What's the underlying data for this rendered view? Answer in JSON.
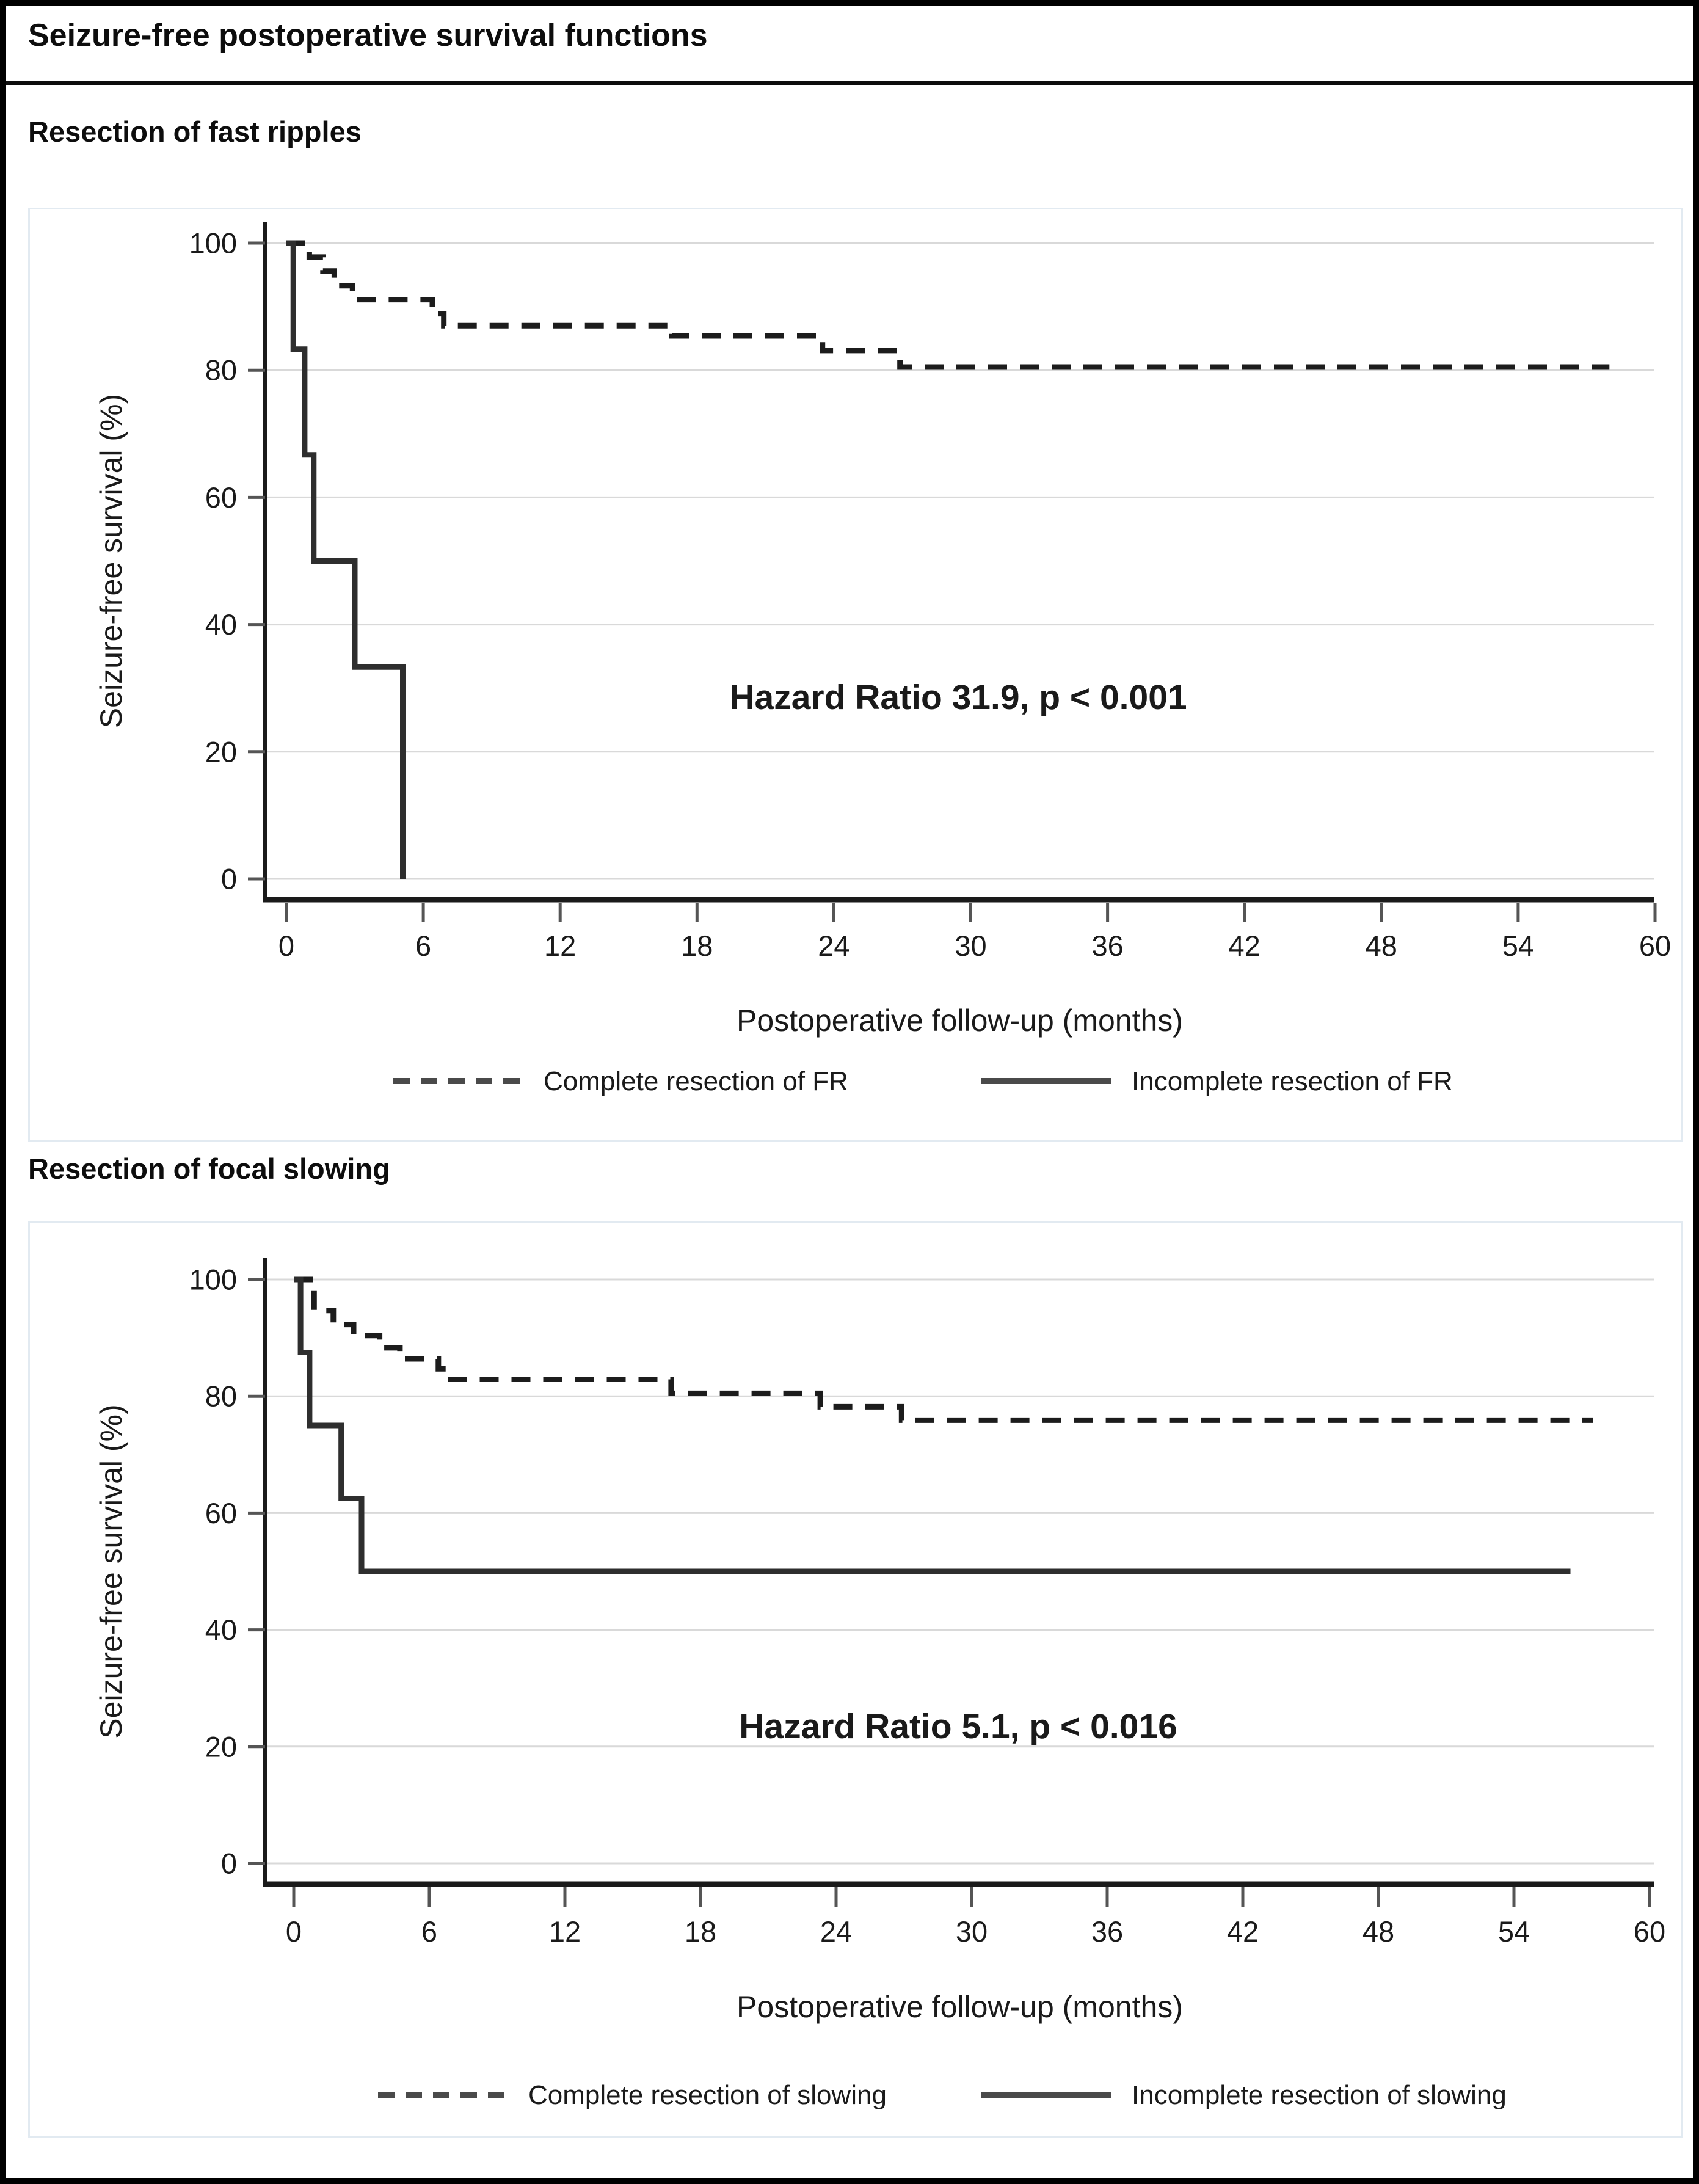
{
  "window": {
    "title": "Seizure-free postoperative survival functions"
  },
  "sections": [
    {
      "heading": "Resection of fast ripples"
    },
    {
      "heading": "Resection of focal slowing"
    }
  ],
  "colors": {
    "text": "#1a1a1a",
    "dashed_curve": "#1c1c1c",
    "solid_curve": "#2e2e2e",
    "legend_sample": "#4a4a4a",
    "grid": "#d9d9d9",
    "axis": "#1a1a1a",
    "chart_border": "#e2eaf1"
  },
  "chart_data": [
    {
      "type": "line",
      "subtype": "kaplan-meier-step",
      "title": "Resection of fast ripples",
      "xlabel": "Postoperative follow-up (months)",
      "ylabel": "Seizure-free survival (%)",
      "xlim": [
        0,
        60
      ],
      "ylim": [
        0,
        100
      ],
      "xticks": [
        0,
        6,
        12,
        18,
        24,
        30,
        36,
        42,
        48,
        54,
        60
      ],
      "yticks": [
        0,
        20,
        40,
        60,
        80,
        100
      ],
      "grid": "horizontal",
      "legend_position": "bottom",
      "annotation": "Hazard Ratio 31.9, p < 0.001",
      "series": [
        {
          "name": "Complete resection of FR",
          "style": "dashed",
          "points": [
            [
              0,
              100
            ],
            [
              1.0,
              100
            ],
            [
              1.0,
              97.8
            ],
            [
              1.6,
              97.8
            ],
            [
              1.6,
              95.6
            ],
            [
              2.1,
              95.6
            ],
            [
              2.1,
              93.3
            ],
            [
              2.9,
              93.3
            ],
            [
              2.9,
              91.1
            ],
            [
              6.4,
              91.1
            ],
            [
              6.4,
              88.9
            ],
            [
              6.9,
              88.9
            ],
            [
              6.9,
              87.0
            ],
            [
              16.9,
              87.0
            ],
            [
              16.9,
              85.4
            ],
            [
              23.5,
              85.4
            ],
            [
              23.5,
              83.1
            ],
            [
              26.9,
              83.1
            ],
            [
              26.9,
              80.5
            ],
            [
              58.0,
              80.5
            ]
          ]
        },
        {
          "name": "Incomplete resection of FR",
          "style": "solid",
          "points": [
            [
              0,
              100
            ],
            [
              0.3,
              100
            ],
            [
              0.3,
              83.3
            ],
            [
              0.8,
              83.3
            ],
            [
              0.8,
              66.7
            ],
            [
              1.2,
              66.7
            ],
            [
              1.2,
              50
            ],
            [
              3.0,
              50
            ],
            [
              3.0,
              33.3
            ],
            [
              5.1,
              33.3
            ],
            [
              5.1,
              0
            ]
          ]
        }
      ]
    },
    {
      "type": "line",
      "subtype": "kaplan-meier-step",
      "title": "Resection of focal slowing",
      "xlabel": "Postoperative follow-up (months)",
      "ylabel": "Seizure-free survival (%)",
      "xlim": [
        0,
        60
      ],
      "ylim": [
        0,
        100
      ],
      "xticks": [
        0,
        6,
        12,
        18,
        24,
        30,
        36,
        42,
        48,
        54,
        60
      ],
      "yticks": [
        0,
        20,
        40,
        60,
        80,
        100
      ],
      "grid": "horizontal",
      "legend_position": "bottom",
      "annotation": "Hazard Ratio 5.1, p < 0.016",
      "series": [
        {
          "name": "Complete resection of slowing",
          "style": "dashed",
          "points": [
            [
              0,
              100
            ],
            [
              0.9,
              100
            ],
            [
              0.9,
              94.7
            ],
            [
              1.75,
              94.7
            ],
            [
              1.75,
              92.3
            ],
            [
              2.65,
              92.3
            ],
            [
              2.65,
              90.4
            ],
            [
              3.8,
              90.4
            ],
            [
              3.8,
              88.3
            ],
            [
              4.7,
              88.3
            ],
            [
              4.7,
              86.4
            ],
            [
              6.4,
              86.4
            ],
            [
              6.4,
              84.7
            ],
            [
              6.8,
              84.7
            ],
            [
              6.8,
              82.9
            ],
            [
              16.7,
              82.9
            ],
            [
              16.7,
              80.5
            ],
            [
              23.3,
              80.5
            ],
            [
              23.3,
              78.2
            ],
            [
              26.9,
              78.2
            ],
            [
              26.9,
              75.9
            ],
            [
              57.5,
              75.9
            ]
          ]
        },
        {
          "name": "Incomplete resection of slowing",
          "style": "solid",
          "points": [
            [
              0,
              100
            ],
            [
              0.3,
              100
            ],
            [
              0.3,
              87.5
            ],
            [
              0.7,
              87.5
            ],
            [
              0.7,
              75
            ],
            [
              2.1,
              75
            ],
            [
              2.1,
              62.5
            ],
            [
              3.0,
              62.5
            ],
            [
              3.0,
              50
            ],
            [
              56.5,
              50
            ]
          ]
        }
      ]
    }
  ]
}
